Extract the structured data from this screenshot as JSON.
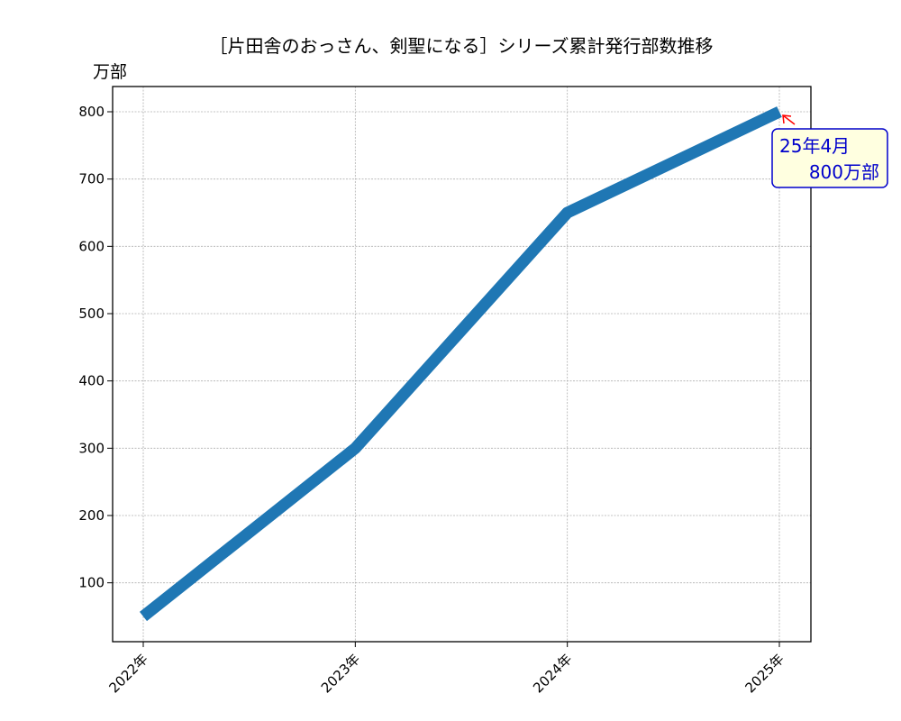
{
  "chart_data": {
    "type": "line",
    "title": "［片田舎のおっさん、剣聖になる］シリーズ累計発行部数推移",
    "xlabel": "",
    "ylabel": "万部",
    "categories": [
      "2022年",
      "2023年",
      "2024年",
      "2025年"
    ],
    "series": [
      {
        "values": [
          50,
          300,
          650,
          800
        ],
        "color": "#1f77b4"
      }
    ],
    "yticks": [
      100,
      200,
      300,
      400,
      500,
      600,
      700,
      800
    ],
    "ylim": [
      12.5,
      837.5
    ],
    "grid": true,
    "annotation": {
      "category": "2025年",
      "value": 800,
      "lines": [
        "25年4月",
        "800万部"
      ],
      "text_color": "#0000cc",
      "box_edge_color": "#0000cc",
      "box_fill_color": "#ffffe0",
      "arrow_color": "#ff0000"
    }
  }
}
